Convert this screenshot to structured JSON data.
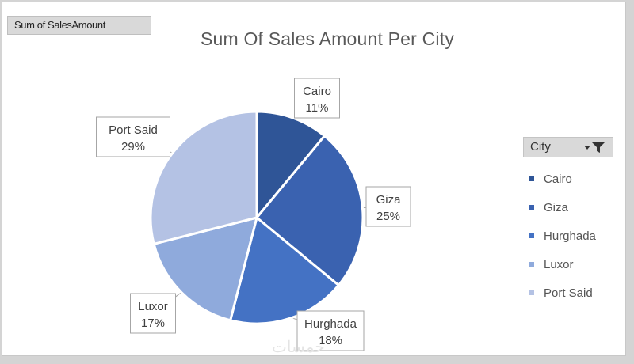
{
  "field_button": {
    "label": "Sum of SalesAmount"
  },
  "legend": {
    "header": "City",
    "filter_icon": "filter-dropdown-icon"
  },
  "watermark": "خمسات",
  "colors": {
    "Cairo": "#2f5597",
    "Giza": "#3a62b0",
    "Hurghada": "#4472c4",
    "Luxor": "#8faadc",
    "Port Said": "#b4c2e4"
  },
  "chart_data": {
    "type": "pie",
    "title": "Sum Of Sales Amount Per City",
    "categories": [
      "Cairo",
      "Giza",
      "Hurghada",
      "Luxor",
      "Port Said"
    ],
    "values": [
      11,
      25,
      18,
      17,
      29
    ],
    "data_labels": [
      "11%",
      "25%",
      "18%",
      "17%",
      "29%"
    ],
    "legend_title": "City",
    "legend_position": "right"
  }
}
